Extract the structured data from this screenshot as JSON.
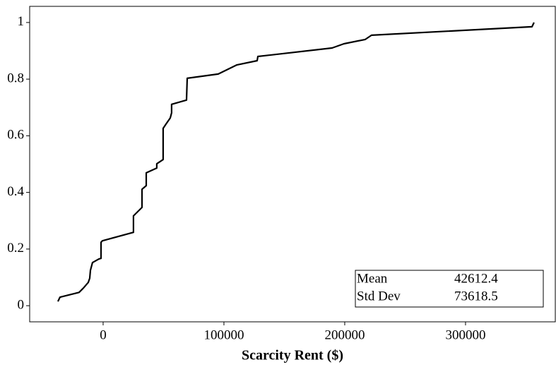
{
  "chart_data": {
    "type": "line",
    "x_label": "Scarcity Rent ($)",
    "x": [
      -37400,
      -35700,
      -19900,
      -16400,
      -12300,
      -11100,
      -10500,
      -8800,
      -3500,
      -1750,
      -1750,
      -600,
      25100,
      25100,
      32200,
      32200,
      35700,
      35700,
      44400,
      44400,
      49700,
      49700,
      52000,
      55600,
      56700,
      56700,
      69000,
      69600,
      95300,
      110500,
      127500,
      128100,
      189500,
      199400,
      217000,
      222200,
      355000,
      356700
    ],
    "values": [
      0.015,
      0.03,
      0.047,
      0.062,
      0.082,
      0.097,
      0.125,
      0.152,
      0.165,
      0.167,
      0.224,
      0.229,
      0.259,
      0.317,
      0.347,
      0.411,
      0.424,
      0.469,
      0.486,
      0.501,
      0.516,
      0.626,
      0.641,
      0.663,
      0.681,
      0.711,
      0.726,
      0.803,
      0.818,
      0.85,
      0.865,
      0.88,
      0.91,
      0.925,
      0.94,
      0.955,
      0.985,
      1.0
    ],
    "color": "#000000",
    "xlim": [
      -60800,
      374300
    ],
    "ylim": [
      -0.057,
      1.057
    ],
    "xticks": [
      0,
      100000,
      200000,
      300000
    ],
    "yticks": [
      0,
      0.2,
      0.4,
      0.6,
      0.8,
      1
    ],
    "stats": [
      {
        "label": "Mean",
        "value": 42612.4
      },
      {
        "label": "Std Dev",
        "value": 73618.5
      }
    ]
  }
}
